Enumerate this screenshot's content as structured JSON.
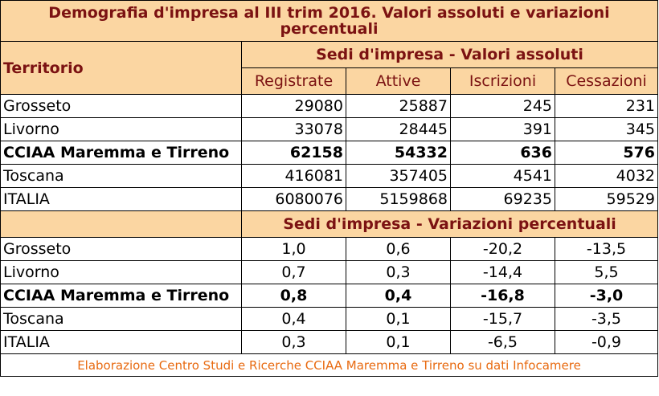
{
  "title": "Demografia d'impresa al III trim 2016. Valori assoluti e variazioni percentuali",
  "territory_header": "Territorio",
  "abs_band": "Sedi d'impresa - Valori assoluti",
  "pct_band": "Sedi d'impresa - Variazioni percentuali",
  "columns": [
    "Registrate",
    "Attive",
    "Iscrizioni",
    "Cessazioni"
  ],
  "abs_rows": [
    {
      "name": "Grosseto",
      "values": [
        "29080",
        "25887",
        "245",
        "231"
      ],
      "bold": false
    },
    {
      "name": "Livorno",
      "values": [
        "33078",
        "28445",
        "391",
        "345"
      ],
      "bold": false
    },
    {
      "name": "CCIAA Maremma e Tirreno",
      "values": [
        "62158",
        "54332",
        "636",
        "576"
      ],
      "bold": true
    },
    {
      "name": "Toscana",
      "values": [
        "416081",
        "357405",
        "4541",
        "4032"
      ],
      "bold": false
    },
    {
      "name": "ITALIA",
      "values": [
        "6080076",
        "5159868",
        "69235",
        "59529"
      ],
      "bold": false
    }
  ],
  "pct_rows": [
    {
      "name": "Grosseto",
      "values": [
        "1,0",
        "0,6",
        "-20,2",
        "-13,5"
      ],
      "bold": false
    },
    {
      "name": "Livorno",
      "values": [
        "0,7",
        "0,3",
        "-14,4",
        "5,5"
      ],
      "bold": false
    },
    {
      "name": "CCIAA Maremma e Tirreno",
      "values": [
        "0,8",
        "0,4",
        "-16,8",
        "-3,0"
      ],
      "bold": true
    },
    {
      "name": "Toscana",
      "values": [
        "0,4",
        "0,1",
        "-15,7",
        "-3,5"
      ],
      "bold": false
    },
    {
      "name": "ITALIA",
      "values": [
        "0,3",
        "0,1",
        "-6,5",
        "-0,9"
      ],
      "bold": false
    }
  ],
  "source_note": "Elaborazione Centro Studi e Ricerche CCIAA Maremma e Tirreno su dati Infocamere",
  "colors": {
    "header_bg": "#fbd6a2",
    "header_text": "#7b1212",
    "note_text": "#e86a10"
  }
}
